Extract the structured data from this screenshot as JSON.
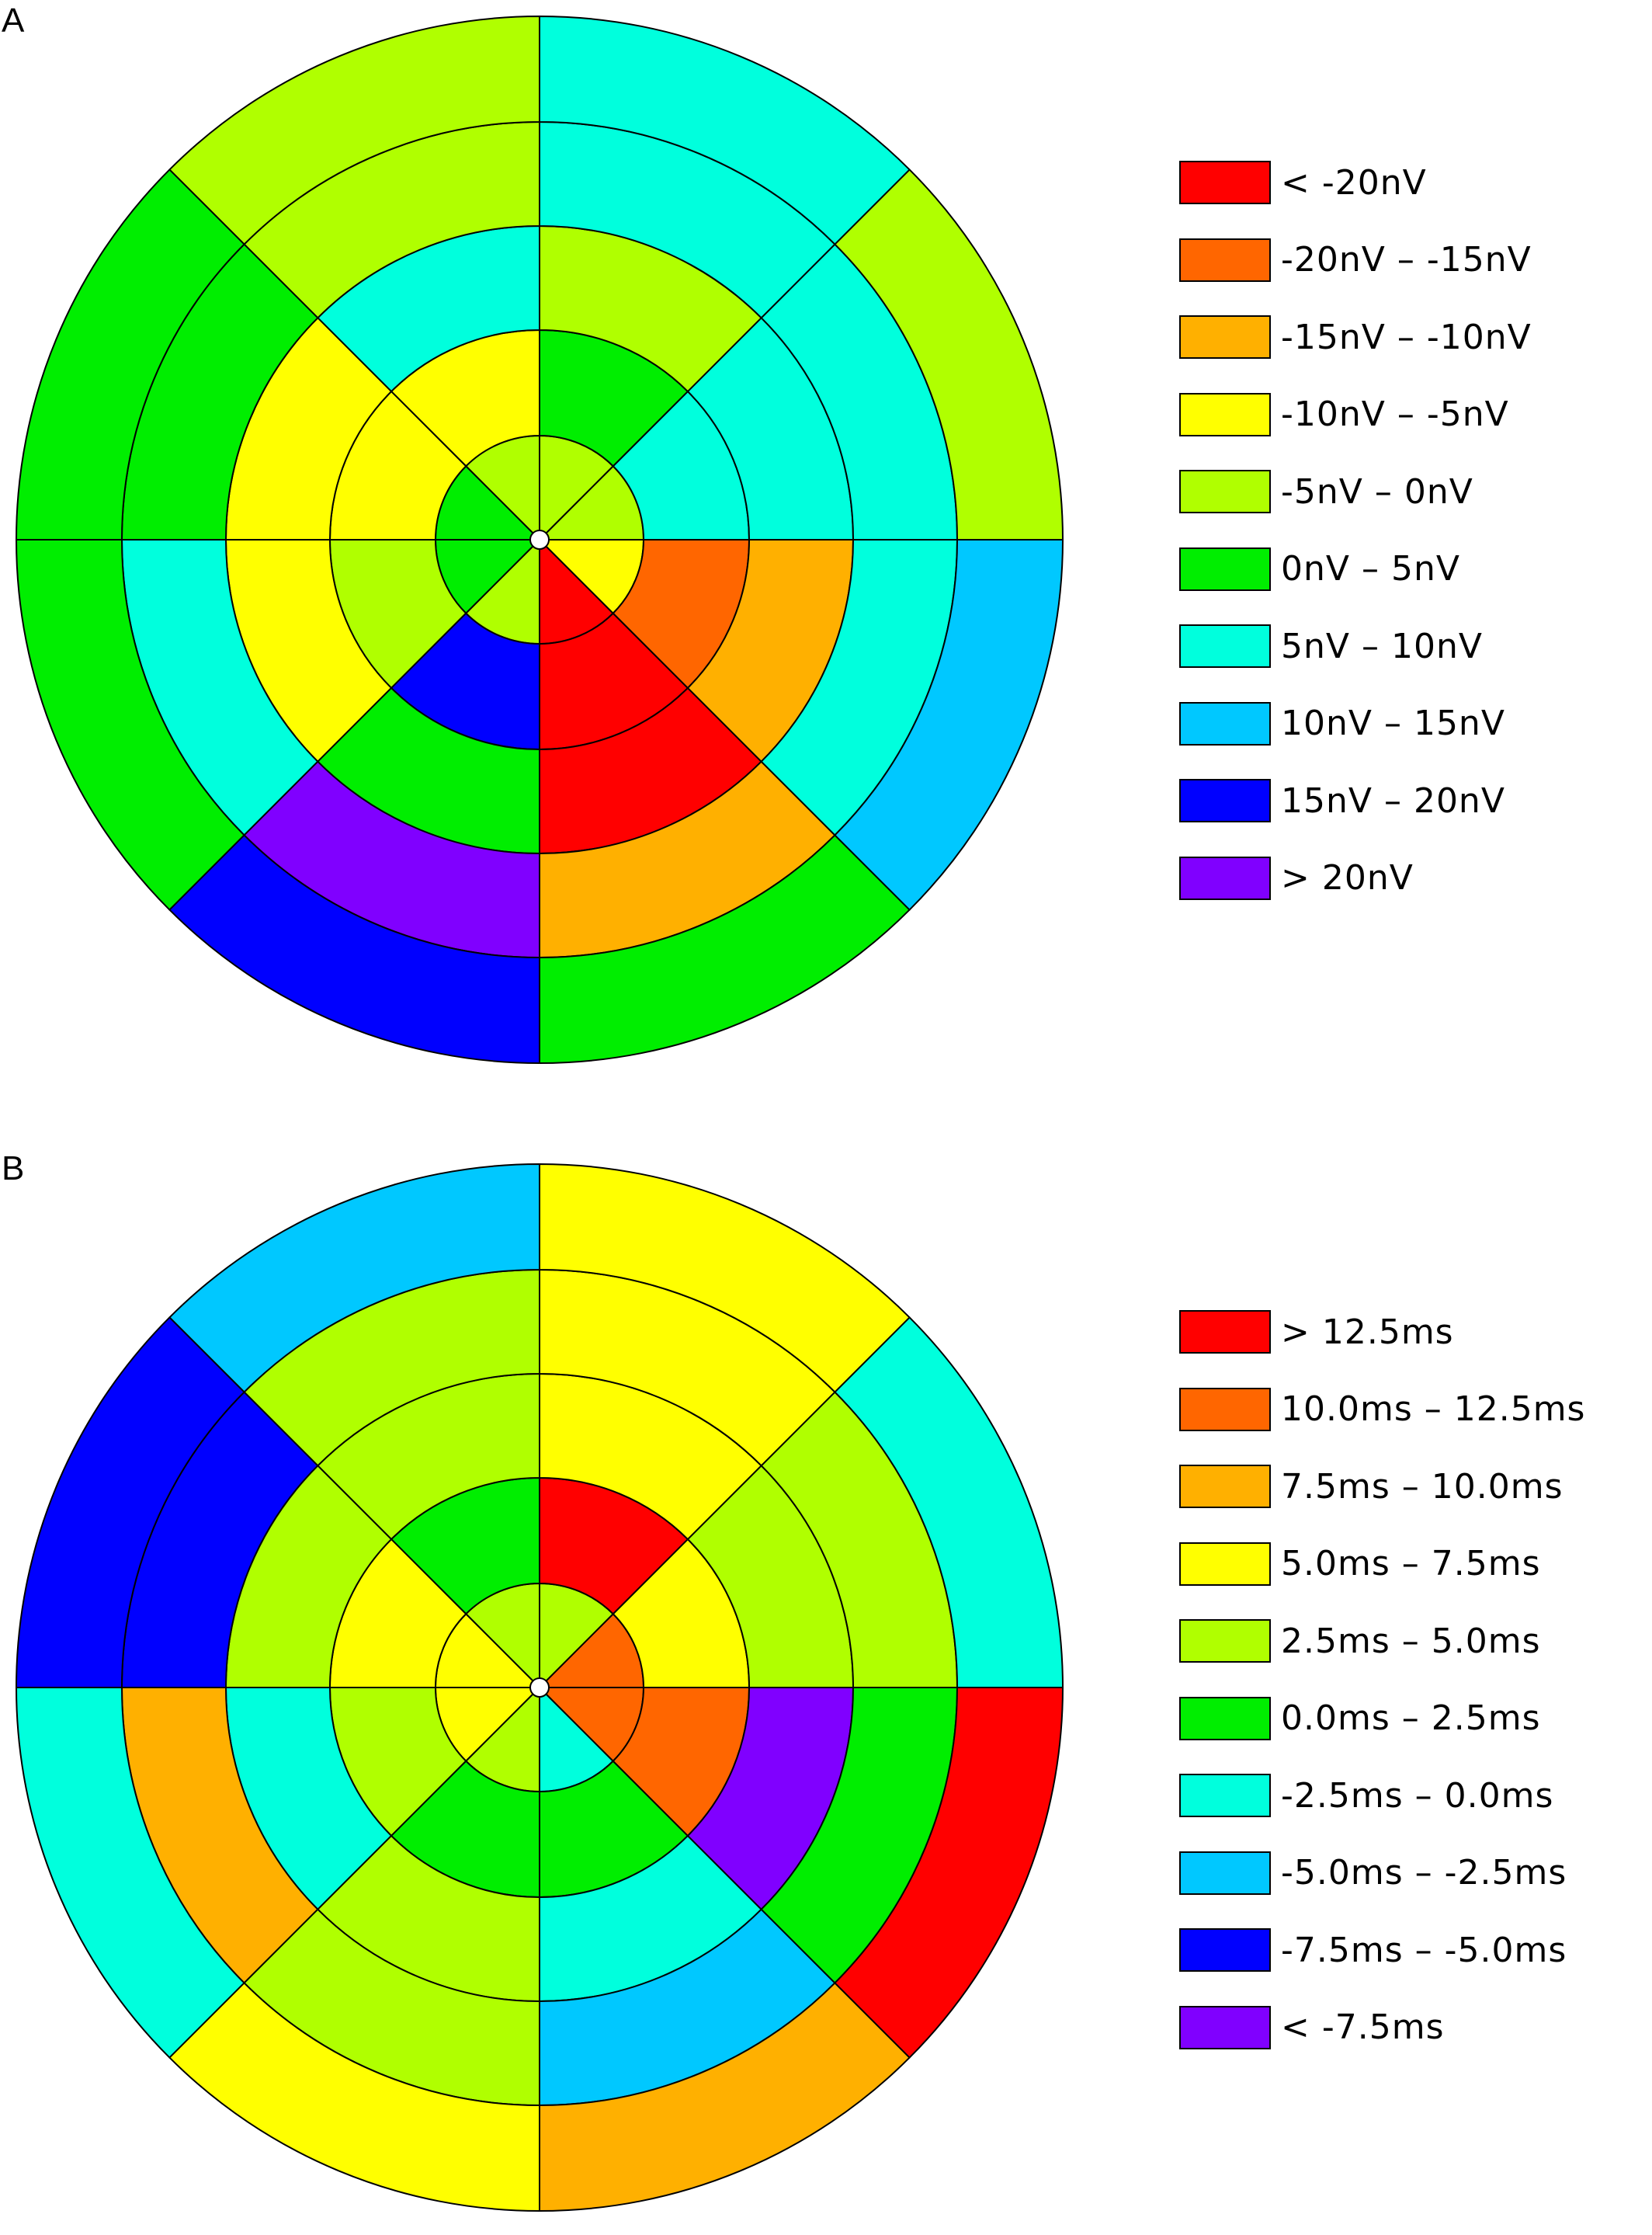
{
  "panels": [
    {
      "id": "a",
      "letter": "A",
      "ring_count": 5,
      "sector_count": 8,
      "note": "",
      "legend": [
        {
          "label": "< -20nV",
          "color": "#ff0000"
        },
        {
          "label": "-20nV – -15nV",
          "color": "#ff6600"
        },
        {
          "label": "-15nV – -10nV",
          "color": "#ffb000"
        },
        {
          "label": "-10nV – -5nV",
          "color": "#ffff00"
        },
        {
          "label": "-5nV – 0nV",
          "color": "#b0ff00"
        },
        {
          "label": "0nV – 5nV",
          "color": "#00ee00"
        },
        {
          "label": "5nV – 10nV",
          "color": "#00ffdd"
        },
        {
          "label": "10nV – 15nV",
          "color": "#00c8ff"
        },
        {
          "label": "15nV – 20nV",
          "color": "#0000ff"
        },
        {
          "label": "> 20nV",
          "color": "#8000ff"
        }
      ],
      "rings": [
        [
          4,
          4,
          4,
          5,
          5,
          4,
          0,
          3
        ],
        [
          6,
          5,
          3,
          3,
          4,
          8,
          0,
          1
        ],
        [
          6,
          4,
          6,
          3,
          3,
          5,
          0,
          2
        ],
        [
          6,
          6,
          4,
          5,
          6,
          9,
          2,
          6
        ],
        [
          4,
          6,
          4,
          5,
          5,
          8,
          5,
          7
        ]
      ]
    },
    {
      "id": "b",
      "letter": "B",
      "ring_count": 5,
      "sector_count": 8,
      "note": "",
      "legend": [
        {
          "label": "> 12.5ms",
          "color": "#ff0000"
        },
        {
          "label": "10.0ms – 12.5ms",
          "color": "#ff6600"
        },
        {
          "label": "7.5ms – 10.0ms",
          "color": "#ffb000"
        },
        {
          "label": "5.0ms – 7.5ms",
          "color": "#ffff00"
        },
        {
          "label": "2.5ms – 5.0ms",
          "color": "#b0ff00"
        },
        {
          "label": "0.0ms – 2.5ms",
          "color": "#00ee00"
        },
        {
          "label": "-2.5ms – 0.0ms",
          "color": "#00ffdd"
        },
        {
          "label": "-5.0ms – -2.5ms",
          "color": "#00c8ff"
        },
        {
          "label": "-7.5ms – -5.0ms",
          "color": "#0000ff"
        },
        {
          "label": "< -7.5ms",
          "color": "#8000ff"
        }
      ],
      "rings": [
        [
          1,
          4,
          4,
          3,
          3,
          4,
          6,
          1
        ],
        [
          3,
          0,
          5,
          3,
          4,
          5,
          5,
          1
        ],
        [
          4,
          3,
          4,
          4,
          6,
          4,
          6,
          9
        ],
        [
          4,
          3,
          4,
          8,
          2,
          4,
          7,
          5
        ],
        [
          6,
          3,
          7,
          8,
          6,
          3,
          2,
          0
        ]
      ]
    }
  ]
}
